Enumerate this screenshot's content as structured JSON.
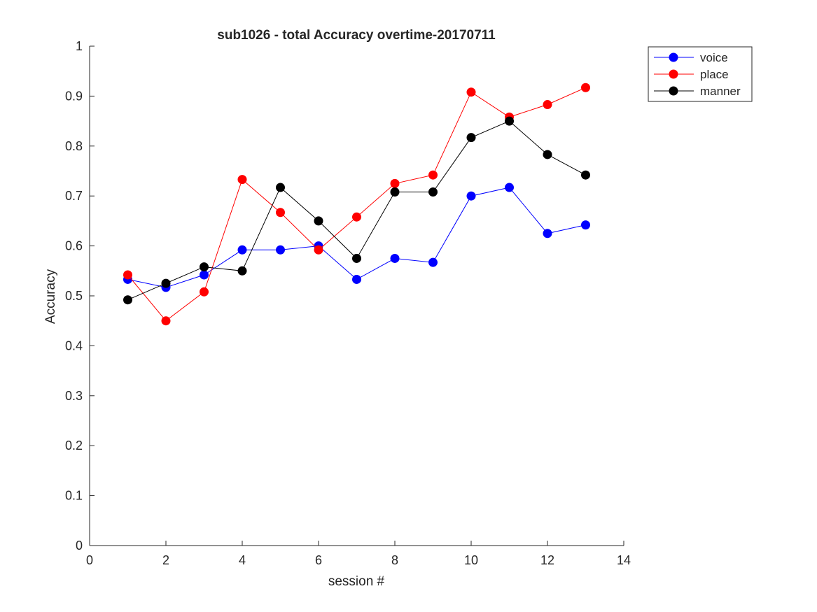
{
  "chart_data": {
    "type": "line",
    "title": "sub1026 - total Accuracy overtime-20170711",
    "xlabel": "session #",
    "ylabel": "Accuracy",
    "xlim": [
      0,
      14
    ],
    "ylim": [
      0,
      1
    ],
    "xticks": [
      0,
      2,
      4,
      6,
      8,
      10,
      12,
      14
    ],
    "yticks": [
      0,
      0.1,
      0.2,
      0.3,
      0.4,
      0.5,
      0.6,
      0.7,
      0.8,
      0.9,
      1
    ],
    "grid": false,
    "legend_position": "top-right outside",
    "x": [
      1,
      2,
      3,
      4,
      5,
      6,
      7,
      8,
      9,
      10,
      11,
      12,
      13
    ],
    "series": [
      {
        "name": "voice",
        "color": "#0000ff",
        "values": [
          0.533,
          0.517,
          0.542,
          0.592,
          0.592,
          0.6,
          0.533,
          0.575,
          0.567,
          0.7,
          0.717,
          0.625,
          0.642
        ]
      },
      {
        "name": "place",
        "color": "#ff0000",
        "values": [
          0.542,
          0.45,
          0.508,
          0.733,
          0.667,
          0.592,
          0.658,
          0.725,
          0.742,
          0.908,
          0.858,
          0.883,
          0.917
        ]
      },
      {
        "name": "manner",
        "color": "#000000",
        "values": [
          0.492,
          0.525,
          0.558,
          0.55,
          0.717,
          0.65,
          0.575,
          0.708,
          0.708,
          0.817,
          0.85,
          0.783,
          0.742
        ]
      }
    ]
  }
}
